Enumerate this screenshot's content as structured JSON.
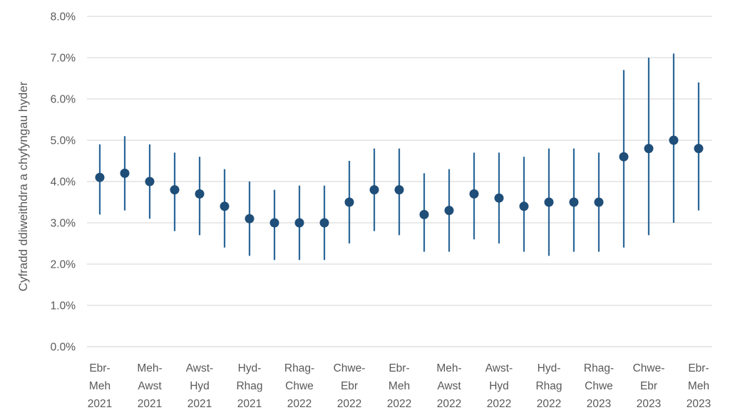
{
  "style": {
    "background": "#FFFFFF",
    "point_color": "#1F4E79",
    "errorbar_color": "#2D6899",
    "gridline_color": "#DCDCDC",
    "axis_line_color": "#D9D9D9",
    "axis_text_color": "#595959"
  },
  "chart_data": {
    "type": "scatter",
    "subtype": "dot-plot-with-confidence-interval-bars",
    "title": "",
    "xlabel": "",
    "ylabel": "Cyfradd ddiweithdra a chyfyngau hyder",
    "ylim": [
      0,
      8
    ],
    "y_tick_interval": 1.0,
    "y_tick_labels": [
      "0.0%",
      "1.0%",
      "2.0%",
      "3.0%",
      "4.0%",
      "5.0%",
      "6.0%",
      "7.0%",
      "8.0%"
    ],
    "grid": "horizontal",
    "legend_position": "none",
    "n_points": 25,
    "series": [
      {
        "name": "Cyfradd ddiweithdra a chyfyngau hyder",
        "values": [
          4.1,
          4.2,
          4.0,
          3.8,
          3.7,
          3.4,
          3.1,
          3.0,
          3.0,
          3.0,
          3.5,
          3.8,
          3.8,
          3.2,
          3.3,
          3.7,
          3.6,
          3.4,
          3.5,
          3.5,
          3.5,
          4.6,
          4.8,
          5.0,
          4.8
        ],
        "ci_low": [
          3.2,
          3.3,
          3.1,
          2.8,
          2.7,
          2.4,
          2.2,
          2.1,
          2.1,
          2.1,
          2.5,
          2.8,
          2.7,
          2.3,
          2.3,
          2.6,
          2.5,
          2.3,
          2.2,
          2.3,
          2.3,
          2.4,
          2.7,
          3.0,
          3.3
        ],
        "ci_high": [
          4.9,
          5.1,
          4.9,
          4.7,
          4.6,
          4.3,
          4.0,
          3.8,
          3.9,
          3.9,
          4.5,
          4.8,
          4.8,
          4.2,
          4.3,
          4.7,
          4.7,
          4.6,
          4.8,
          4.8,
          4.7,
          6.7,
          7.0,
          7.1,
          6.4
        ]
      }
    ],
    "x_tick_labels": [
      {
        "at_index": 0,
        "lines": [
          "Ebr-",
          "Meh",
          "2021"
        ]
      },
      {
        "at_index": 2,
        "lines": [
          "Meh-",
          "Awst",
          "2021"
        ]
      },
      {
        "at_index": 4,
        "lines": [
          "Awst-",
          "Hyd",
          "2021"
        ]
      },
      {
        "at_index": 6,
        "lines": [
          "Hyd-",
          "Rhag",
          "2021"
        ]
      },
      {
        "at_index": 8,
        "lines": [
          "Rhag-",
          "Chwe",
          "2022"
        ]
      },
      {
        "at_index": 10,
        "lines": [
          "Chwe-",
          "Ebr",
          "2022"
        ]
      },
      {
        "at_index": 12,
        "lines": [
          "Ebr-",
          "Meh",
          "2022"
        ]
      },
      {
        "at_index": 14,
        "lines": [
          "Meh-",
          "Awst",
          "2022"
        ]
      },
      {
        "at_index": 16,
        "lines": [
          "Awst-",
          "Hyd",
          "2022"
        ]
      },
      {
        "at_index": 18,
        "lines": [
          "Hyd-",
          "Rhag",
          "2022"
        ]
      },
      {
        "at_index": 20,
        "lines": [
          "Rhag-",
          "Chwe",
          "2023"
        ]
      },
      {
        "at_index": 22,
        "lines": [
          "Chwe-",
          "Ebr",
          "2023"
        ]
      },
      {
        "at_index": 24,
        "lines": [
          "Ebr-",
          "Meh",
          "2023"
        ]
      }
    ]
  }
}
